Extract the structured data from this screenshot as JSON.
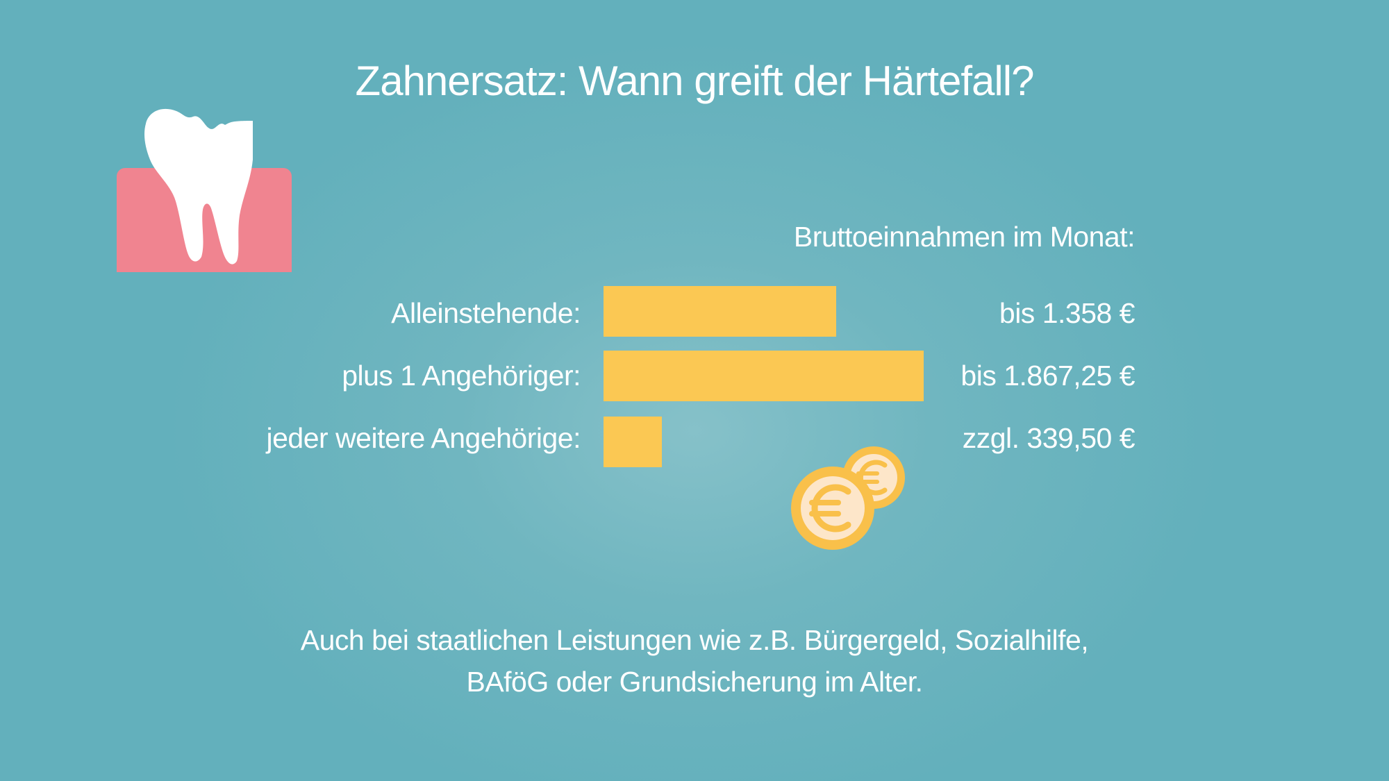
{
  "title": "Zahnersatz: Wann greift der Härtefall?",
  "colors": {
    "background": "#63b0bc",
    "bar": "#fbc853",
    "gum": "#f08490",
    "tooth": "#ffffff",
    "coin_rim": "#f9c04a",
    "coin_face": "#fde6c9",
    "text": "#ffffff"
  },
  "icons": [
    "tooth-icon",
    "euro-coin-icon"
  ],
  "chart_data": {
    "type": "bar",
    "orientation": "horizontal",
    "title": "Zahnersatz: Wann greift der Härtefall?",
    "value_header": "Bruttoeinnahmen im Monat:",
    "categories": [
      "Alleinstehende:",
      "plus 1 Angehöriger:",
      "jeder weitere Angehörige:"
    ],
    "values": [
      1358,
      1867.25,
      339.5
    ],
    "value_labels": [
      "bis 1.358 €",
      "bis 1.867,25 €",
      "zzgl. 339,50 €"
    ],
    "unit": "€",
    "xlim": [
      0,
      1867.25
    ],
    "grid": false
  },
  "footnote": {
    "line1": "Auch bei staatlichen Leistungen wie z.B. Bürgergeld, Sozialhilfe,",
    "line2": "BAföG oder Grundsicherung im Alter."
  }
}
